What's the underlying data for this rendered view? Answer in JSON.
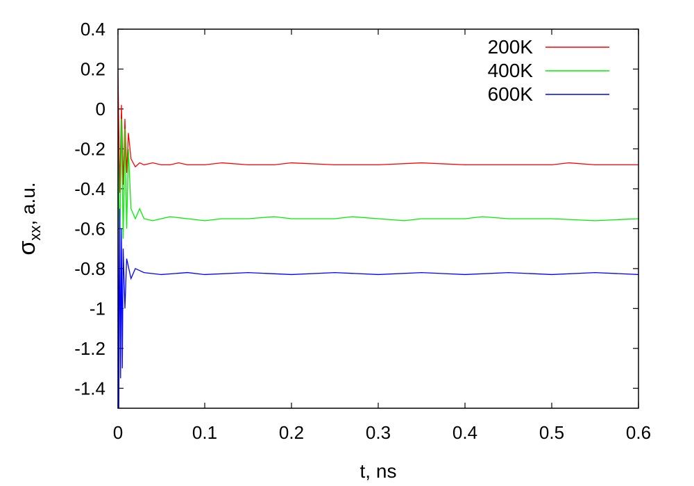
{
  "chart_data": {
    "type": "line",
    "xlabel": "t, ns",
    "ylabel": {
      "main": "σ",
      "sub": "xx",
      "suffix": ", a.u."
    },
    "xlim": [
      0,
      0.6
    ],
    "ylim": [
      -1.5,
      0.4
    ],
    "xticks": [
      0,
      0.1,
      0.2,
      0.3,
      0.4,
      0.5,
      0.6
    ],
    "yticks": [
      0.4,
      0.2,
      0,
      -0.2,
      -0.4,
      -0.6,
      -0.8,
      -1,
      -1.2,
      -1.4
    ],
    "grid": false,
    "legend_position": "top-right",
    "series": [
      {
        "name": "200K",
        "color": "#ff0000",
        "x": [
          0,
          0.002,
          0.004,
          0.006,
          0.008,
          0.01,
          0.012,
          0.015,
          0.02,
          0.025,
          0.03,
          0.04,
          0.05,
          0.06,
          0.07,
          0.08,
          0.1,
          0.12,
          0.15,
          0.18,
          0.2,
          0.25,
          0.3,
          0.35,
          0.4,
          0.45,
          0.5,
          0.52,
          0.55,
          0.6
        ],
        "y": [
          0.2,
          -0.42,
          0.02,
          -0.38,
          -0.05,
          -0.32,
          -0.12,
          -0.25,
          -0.29,
          -0.27,
          -0.28,
          -0.27,
          -0.28,
          -0.28,
          -0.27,
          -0.28,
          -0.28,
          -0.27,
          -0.28,
          -0.28,
          -0.27,
          -0.28,
          -0.28,
          -0.27,
          -0.28,
          -0.28,
          -0.28,
          -0.27,
          -0.28,
          -0.28
        ]
      },
      {
        "name": "400K",
        "color": "#00ee00",
        "x": [
          0,
          0.002,
          0.004,
          0.006,
          0.008,
          0.01,
          0.012,
          0.015,
          0.02,
          0.025,
          0.03,
          0.04,
          0.05,
          0.06,
          0.08,
          0.1,
          0.12,
          0.15,
          0.18,
          0.2,
          0.25,
          0.27,
          0.3,
          0.33,
          0.35,
          0.4,
          0.42,
          0.45,
          0.5,
          0.55,
          0.6
        ],
        "y": [
          -0.05,
          -0.7,
          -0.05,
          -0.65,
          -0.1,
          -0.6,
          -0.2,
          -0.5,
          -0.55,
          -0.5,
          -0.55,
          -0.56,
          -0.55,
          -0.54,
          -0.55,
          -0.56,
          -0.55,
          -0.55,
          -0.54,
          -0.55,
          -0.55,
          -0.54,
          -0.55,
          -0.56,
          -0.55,
          -0.55,
          -0.54,
          -0.55,
          -0.55,
          -0.56,
          -0.55
        ]
      },
      {
        "name": "600K",
        "color": "#0000ff",
        "x": [
          0,
          0.001,
          0.002,
          0.003,
          0.004,
          0.005,
          0.006,
          0.008,
          0.01,
          0.015,
          0.02,
          0.03,
          0.05,
          0.08,
          0.1,
          0.15,
          0.2,
          0.25,
          0.3,
          0.35,
          0.4,
          0.45,
          0.5,
          0.55,
          0.6
        ],
        "y": [
          -0.1,
          -1.5,
          -0.5,
          -1.35,
          -0.6,
          -1.3,
          -0.7,
          -1.0,
          -0.75,
          -0.85,
          -0.8,
          -0.82,
          -0.83,
          -0.82,
          -0.83,
          -0.82,
          -0.83,
          -0.82,
          -0.83,
          -0.82,
          -0.83,
          -0.82,
          -0.83,
          -0.82,
          -0.83
        ]
      }
    ]
  }
}
